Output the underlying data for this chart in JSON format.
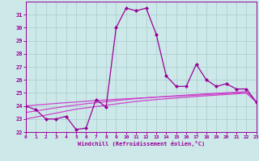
{
  "xlabel": "Windchill (Refroidissement éolien,°C)",
  "x": [
    0,
    1,
    2,
    3,
    4,
    5,
    6,
    7,
    8,
    9,
    10,
    11,
    12,
    13,
    14,
    15,
    16,
    17,
    18,
    19,
    20,
    21,
    22,
    23
  ],
  "y_main": [
    24.0,
    23.7,
    23.0,
    23.0,
    23.2,
    22.2,
    22.3,
    24.5,
    23.9,
    30.0,
    31.5,
    31.3,
    31.5,
    29.5,
    26.3,
    25.5,
    25.5,
    27.2,
    26.0,
    25.5,
    25.7,
    25.3,
    25.3,
    24.3
  ],
  "y_line1": [
    23.0,
    23.15,
    23.3,
    23.45,
    23.6,
    23.75,
    23.85,
    23.95,
    24.05,
    24.15,
    24.25,
    24.35,
    24.42,
    24.49,
    24.55,
    24.61,
    24.67,
    24.73,
    24.78,
    24.83,
    24.88,
    24.93,
    24.98,
    24.3
  ],
  "y_line2": [
    23.5,
    23.62,
    23.74,
    23.86,
    23.97,
    24.07,
    24.17,
    24.25,
    24.33,
    24.41,
    24.49,
    24.56,
    24.62,
    24.68,
    24.73,
    24.78,
    24.83,
    24.88,
    24.93,
    24.97,
    25.01,
    25.05,
    25.1,
    24.3
  ],
  "y_line3": [
    24.0,
    24.07,
    24.13,
    24.19,
    24.25,
    24.3,
    24.36,
    24.41,
    24.46,
    24.51,
    24.55,
    24.59,
    24.63,
    24.67,
    24.71,
    24.75,
    24.79,
    24.83,
    24.87,
    24.91,
    24.95,
    24.99,
    25.03,
    24.3
  ],
  "color_main": "#990099",
  "color_lines": "#cc44cc",
  "bg_color": "#cce8e8",
  "grid_color": "#aacccc",
  "ylim_min": 22,
  "ylim_max": 32,
  "yticks": [
    22,
    23,
    24,
    25,
    26,
    27,
    28,
    29,
    30,
    31
  ],
  "xticks": [
    0,
    1,
    2,
    3,
    4,
    5,
    6,
    7,
    8,
    9,
    10,
    11,
    12,
    13,
    14,
    15,
    16,
    17,
    18,
    19,
    20,
    21,
    22,
    23
  ]
}
